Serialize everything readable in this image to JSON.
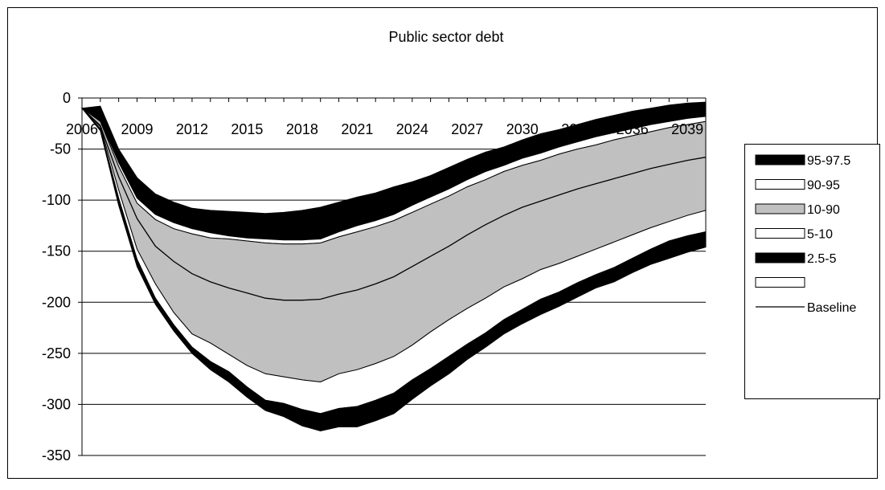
{
  "chart_data": {
    "type": "area",
    "title": "Public sector debt",
    "xlabel": "",
    "ylabel": "",
    "ylim": [
      -350,
      0
    ],
    "y_ticks": [
      0,
      -50,
      -100,
      -150,
      -200,
      -250,
      -300,
      -350
    ],
    "x_ticks": [
      "2006",
      "2009",
      "2012",
      "2015",
      "2018",
      "2021",
      "2024",
      "2027",
      "2030",
      "2033",
      "2036",
      "2039"
    ],
    "grid": "horizontal",
    "legend_position": "right",
    "x": [
      2006,
      2007,
      2008,
      2009,
      2010,
      2011,
      2012,
      2013,
      2014,
      2015,
      2016,
      2017,
      2018,
      2019,
      2020,
      2021,
      2022,
      2023,
      2024,
      2025,
      2026,
      2027,
      2028,
      2029,
      2030,
      2031,
      2032,
      2033,
      2034,
      2035,
      2036,
      2037,
      2038,
      2039,
      2040
    ],
    "bands": [
      {
        "name": "P2.5",
        "values": [
          -10,
          -32,
          -105,
          -165,
          -202,
          -228,
          -250,
          -266,
          -278,
          -293,
          -306,
          -312,
          -321,
          -326,
          -322,
          -322,
          -316,
          -309,
          -295,
          -282,
          -270,
          -256,
          -244,
          -231,
          -221,
          -212,
          -204,
          -195,
          -186,
          -180,
          -171,
          -163,
          -157,
          -151,
          -146
        ]
      },
      {
        "name": "P5",
        "values": [
          -10,
          -30,
          -98,
          -158,
          -196,
          -222,
          -244,
          -258,
          -268,
          -283,
          -296,
          -299,
          -305,
          -309,
          -304,
          -302,
          -296,
          -289,
          -276,
          -265,
          -253,
          -241,
          -230,
          -217,
          -207,
          -197,
          -190,
          -181,
          -173,
          -166,
          -157,
          -148,
          -140,
          -135,
          -131
        ]
      },
      {
        "name": "P10",
        "values": [
          -10,
          -28,
          -90,
          -148,
          -182,
          -210,
          -231,
          -240,
          -251,
          -262,
          -270,
          -273,
          -276,
          -278,
          -270,
          -266,
          -260,
          -253,
          -242,
          -229,
          -217,
          -206,
          -196,
          -185,
          -177,
          -168,
          -162,
          -155,
          -148,
          -141,
          -134,
          -127,
          -121,
          -115,
          -110
        ]
      },
      {
        "name": "Baseline",
        "values": [
          -10,
          -27,
          -77,
          -118,
          -145,
          -160,
          -172,
          -180,
          -186,
          -191,
          -196,
          -198,
          -198,
          -197,
          -192,
          -188,
          -182,
          -175,
          -165,
          -155,
          -145,
          -134,
          -124,
          -115,
          -107,
          -101,
          -95,
          -89,
          -84,
          -79,
          -74,
          -69,
          -65,
          -61,
          -58
        ]
      },
      {
        "name": "P90",
        "values": [
          -10,
          -23,
          -67,
          -103,
          -119,
          -128,
          -133,
          -137,
          -138,
          -140,
          -142,
          -143,
          -143,
          -142,
          -136,
          -131,
          -126,
          -120,
          -112,
          -104,
          -96,
          -87,
          -80,
          -72,
          -66,
          -61,
          -55,
          -50,
          -46,
          -41,
          -37,
          -33,
          -29,
          -26,
          -23
        ]
      },
      {
        "name": "P95",
        "values": [
          -10,
          -22,
          -63,
          -98,
          -114,
          -122,
          -128,
          -132,
          -135,
          -137,
          -138,
          -139,
          -139,
          -138,
          -131,
          -125,
          -120,
          -114,
          -105,
          -97,
          -89,
          -80,
          -72,
          -66,
          -59,
          -54,
          -48,
          -43,
          -38,
          -34,
          -30,
          -26,
          -23,
          -20,
          -18
        ]
      },
      {
        "name": "P97.5",
        "values": [
          -10,
          -8,
          -50,
          -78,
          -94,
          -102,
          -108,
          -110,
          -111,
          -112,
          -113,
          -112,
          -110,
          -107,
          -102,
          -97,
          -93,
          -87,
          -82,
          -76,
          -68,
          -60,
          -53,
          -48,
          -41,
          -35,
          -31,
          -26,
          -21,
          -17,
          -13,
          -10,
          -7,
          -5,
          -4
        ]
      }
    ],
    "legend": [
      {
        "label": "95-97.5",
        "style": "black"
      },
      {
        "label": "90-95",
        "style": "white"
      },
      {
        "label": "10-90",
        "style": "gray"
      },
      {
        "label": "5-10",
        "style": "white"
      },
      {
        "label": "2.5-5",
        "style": "black"
      },
      {
        "label": "",
        "style": "white"
      },
      {
        "label": "Baseline",
        "style": "line"
      }
    ],
    "colors": {
      "black_band": "#000000",
      "white_band": "#ffffff",
      "gray_band": "#c0c0c0",
      "baseline": "#000000",
      "grid": "#000000"
    }
  }
}
